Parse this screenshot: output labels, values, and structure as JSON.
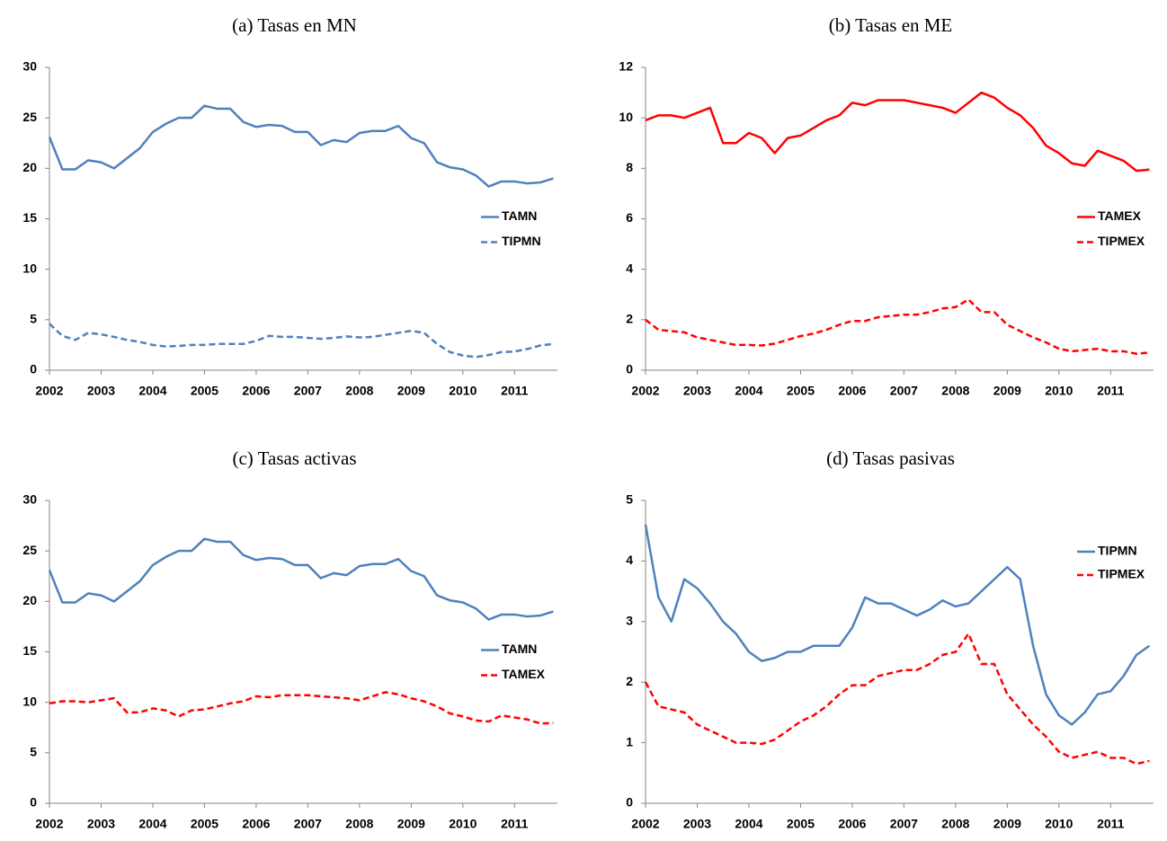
{
  "chart_data": [
    {
      "type": "line",
      "title": "(a) Tasas en MN",
      "x": [
        2002,
        2002.25,
        2002.5,
        2002.75,
        2003,
        2003.25,
        2003.5,
        2003.75,
        2004,
        2004.25,
        2004.5,
        2004.75,
        2005,
        2005.25,
        2005.5,
        2005.75,
        2006,
        2006.25,
        2006.5,
        2006.75,
        2007,
        2007.25,
        2007.5,
        2007.75,
        2008,
        2008.25,
        2008.5,
        2008.75,
        2009,
        2009.25,
        2009.5,
        2009.75,
        2010,
        2010.25,
        2010.5,
        2010.75,
        2011,
        2011.25,
        2011.5,
        2011.75
      ],
      "xlim": [
        2002,
        2011.83
      ],
      "xticks": [
        2002,
        2003,
        2004,
        2005,
        2006,
        2007,
        2008,
        2009,
        2010,
        2011
      ],
      "ylim": [
        0,
        30
      ],
      "yticks": [
        0,
        5,
        10,
        15,
        20,
        25,
        30
      ],
      "legend": "center right",
      "series": [
        {
          "name": "TAMN",
          "color": "#4f81bd",
          "linestyle": "solid",
          "values": [
            23.1,
            19.9,
            19.9,
            20.8,
            20.6,
            20.0,
            21.0,
            22.0,
            23.6,
            24.4,
            25.0,
            25.0,
            26.2,
            25.9,
            25.9,
            24.6,
            24.1,
            24.3,
            24.2,
            23.6,
            23.6,
            22.3,
            22.8,
            22.6,
            23.5,
            23.7,
            23.7,
            24.2,
            23.0,
            22.5,
            20.6,
            20.1,
            19.9,
            19.3,
            18.2,
            18.7,
            18.7,
            18.5,
            18.6,
            19.0
          ]
        },
        {
          "name": "TIPMN",
          "color": "#4f81bd",
          "linestyle": "dashed",
          "values": [
            4.6,
            3.4,
            3.0,
            3.7,
            3.55,
            3.3,
            3.0,
            2.8,
            2.5,
            2.35,
            2.4,
            2.5,
            2.5,
            2.6,
            2.6,
            2.6,
            2.9,
            3.4,
            3.3,
            3.3,
            3.2,
            3.1,
            3.2,
            3.35,
            3.25,
            3.3,
            3.5,
            3.7,
            3.9,
            3.7,
            2.6,
            1.8,
            1.45,
            1.3,
            1.5,
            1.8,
            1.85,
            2.1,
            2.45,
            2.6
          ]
        }
      ]
    },
    {
      "type": "line",
      "title": "(b) Tasas en ME",
      "x": [
        2002,
        2002.25,
        2002.5,
        2002.75,
        2003,
        2003.25,
        2003.5,
        2003.75,
        2004,
        2004.25,
        2004.5,
        2004.75,
        2005,
        2005.25,
        2005.5,
        2005.75,
        2006,
        2006.25,
        2006.5,
        2006.75,
        2007,
        2007.25,
        2007.5,
        2007.75,
        2008,
        2008.25,
        2008.5,
        2008.75,
        2009,
        2009.25,
        2009.5,
        2009.75,
        2010,
        2010.25,
        2010.5,
        2010.75,
        2011,
        2011.25,
        2011.5,
        2011.75
      ],
      "xlim": [
        2002,
        2011.83
      ],
      "xticks": [
        2002,
        2003,
        2004,
        2005,
        2006,
        2007,
        2008,
        2009,
        2010,
        2011
      ],
      "ylim": [
        0,
        12
      ],
      "yticks": [
        0,
        2,
        4,
        6,
        8,
        10,
        12
      ],
      "legend": "center right",
      "series": [
        {
          "name": "TAMEX",
          "color": "#ff0000",
          "linestyle": "solid",
          "values": [
            9.9,
            10.1,
            10.1,
            10.0,
            10.2,
            10.4,
            9.0,
            9.0,
            9.4,
            9.2,
            8.6,
            9.2,
            9.3,
            9.6,
            9.9,
            10.1,
            10.6,
            10.5,
            10.7,
            10.7,
            10.7,
            10.6,
            10.5,
            10.4,
            10.2,
            10.6,
            11.0,
            10.8,
            10.4,
            10.1,
            9.6,
            8.9,
            8.6,
            8.2,
            8.1,
            8.7,
            8.5,
            8.3,
            7.9,
            7.95
          ]
        },
        {
          "name": "TIPMEX",
          "color": "#ff0000",
          "linestyle": "dashed",
          "values": [
            2.0,
            1.6,
            1.55,
            1.5,
            1.3,
            1.2,
            1.1,
            1.0,
            1.0,
            0.98,
            1.05,
            1.2,
            1.35,
            1.45,
            1.6,
            1.8,
            1.95,
            1.95,
            2.1,
            2.15,
            2.2,
            2.2,
            2.3,
            2.45,
            2.5,
            2.8,
            2.3,
            2.3,
            1.8,
            1.55,
            1.3,
            1.1,
            0.85,
            0.75,
            0.8,
            0.85,
            0.75,
            0.75,
            0.65,
            0.7
          ]
        }
      ]
    },
    {
      "type": "line",
      "title": "(c) Tasas activas",
      "x": [
        2002,
        2002.25,
        2002.5,
        2002.75,
        2003,
        2003.25,
        2003.5,
        2003.75,
        2004,
        2004.25,
        2004.5,
        2004.75,
        2005,
        2005.25,
        2005.5,
        2005.75,
        2006,
        2006.25,
        2006.5,
        2006.75,
        2007,
        2007.25,
        2007.5,
        2007.75,
        2008,
        2008.25,
        2008.5,
        2008.75,
        2009,
        2009.25,
        2009.5,
        2009.75,
        2010,
        2010.25,
        2010.5,
        2010.75,
        2011,
        2011.25,
        2011.5,
        2011.75
      ],
      "xlim": [
        2002,
        2011.83
      ],
      "xticks": [
        2002,
        2003,
        2004,
        2005,
        2006,
        2007,
        2008,
        2009,
        2010,
        2011
      ],
      "ylim": [
        0,
        30
      ],
      "yticks": [
        0,
        5,
        10,
        15,
        20,
        25,
        30
      ],
      "legend": "center right",
      "series": [
        {
          "name": "TAMN",
          "color": "#4f81bd",
          "linestyle": "solid",
          "values": [
            23.1,
            19.9,
            19.9,
            20.8,
            20.6,
            20.0,
            21.0,
            22.0,
            23.6,
            24.4,
            25.0,
            25.0,
            26.2,
            25.9,
            25.9,
            24.6,
            24.1,
            24.3,
            24.2,
            23.6,
            23.6,
            22.3,
            22.8,
            22.6,
            23.5,
            23.7,
            23.7,
            24.2,
            23.0,
            22.5,
            20.6,
            20.1,
            19.9,
            19.3,
            18.2,
            18.7,
            18.7,
            18.5,
            18.6,
            19.0
          ]
        },
        {
          "name": "TAMEX",
          "color": "#ff0000",
          "linestyle": "dashed",
          "values": [
            9.9,
            10.1,
            10.1,
            10.0,
            10.2,
            10.4,
            9.0,
            9.0,
            9.4,
            9.2,
            8.6,
            9.2,
            9.3,
            9.6,
            9.9,
            10.1,
            10.6,
            10.5,
            10.7,
            10.7,
            10.7,
            10.6,
            10.5,
            10.4,
            10.2,
            10.6,
            11.0,
            10.8,
            10.4,
            10.1,
            9.6,
            8.9,
            8.6,
            8.2,
            8.1,
            8.7,
            8.5,
            8.3,
            7.9,
            7.95
          ]
        }
      ]
    },
    {
      "type": "line",
      "title": "(d) Tasas pasivas",
      "x": [
        2002,
        2002.25,
        2002.5,
        2002.75,
        2003,
        2003.25,
        2003.5,
        2003.75,
        2004,
        2004.25,
        2004.5,
        2004.75,
        2005,
        2005.25,
        2005.5,
        2005.75,
        2006,
        2006.25,
        2006.5,
        2006.75,
        2007,
        2007.25,
        2007.5,
        2007.75,
        2008,
        2008.25,
        2008.5,
        2008.75,
        2009,
        2009.25,
        2009.5,
        2009.75,
        2010,
        2010.25,
        2010.5,
        2010.75,
        2011,
        2011.25,
        2011.5,
        2011.75
      ],
      "xlim": [
        2002,
        2011.83
      ],
      "xticks": [
        2002,
        2003,
        2004,
        2005,
        2006,
        2007,
        2008,
        2009,
        2010,
        2011
      ],
      "ylim": [
        0,
        5
      ],
      "yticks": [
        0,
        1,
        2,
        3,
        4,
        5
      ],
      "legend": "upper right",
      "series": [
        {
          "name": "TIPMN",
          "color": "#4f81bd",
          "linestyle": "solid",
          "values": [
            4.6,
            3.4,
            3.0,
            3.7,
            3.55,
            3.3,
            3.0,
            2.8,
            2.5,
            2.35,
            2.4,
            2.5,
            2.5,
            2.6,
            2.6,
            2.6,
            2.9,
            3.4,
            3.3,
            3.3,
            3.2,
            3.1,
            3.2,
            3.35,
            3.25,
            3.3,
            3.5,
            3.7,
            3.9,
            3.7,
            2.6,
            1.8,
            1.45,
            1.3,
            1.5,
            1.8,
            1.85,
            2.1,
            2.45,
            2.6
          ]
        },
        {
          "name": "TIPMEX",
          "color": "#ff0000",
          "linestyle": "dashed",
          "values": [
            2.0,
            1.6,
            1.55,
            1.5,
            1.3,
            1.2,
            1.1,
            1.0,
            1.0,
            0.98,
            1.05,
            1.2,
            1.35,
            1.45,
            1.6,
            1.8,
            1.95,
            1.95,
            2.1,
            2.15,
            2.2,
            2.2,
            2.3,
            2.45,
            2.5,
            2.8,
            2.3,
            2.3,
            1.8,
            1.55,
            1.3,
            1.1,
            0.85,
            0.75,
            0.8,
            0.85,
            0.75,
            0.75,
            0.65,
            0.7
          ]
        }
      ]
    }
  ]
}
